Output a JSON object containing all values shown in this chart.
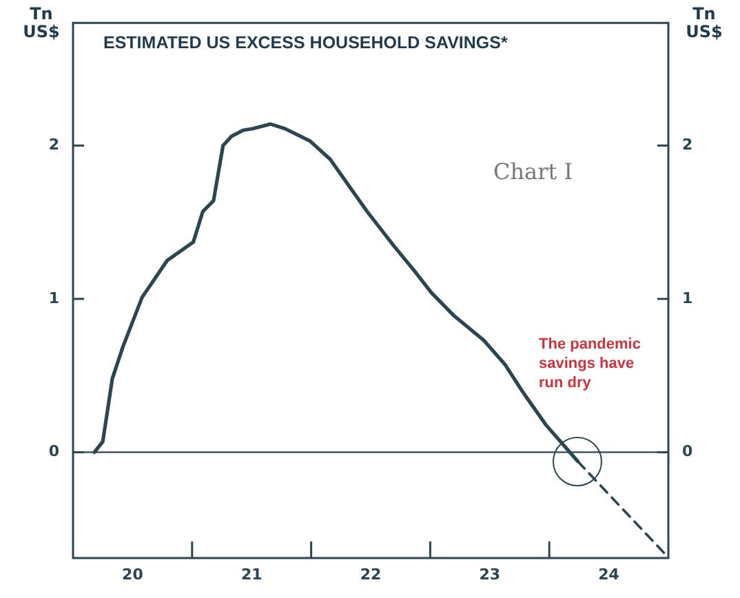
{
  "chart_data": {
    "type": "line",
    "title": "ESTIMATED US EXCESS HOUSEHOLD SAVINGS*",
    "ylabel": "Tn US$",
    "y2label": "Tn US$",
    "annotations": [
      "Chart I",
      "The pandemic savings have run dry"
    ],
    "series": [
      {
        "color": "#2b4650",
        "line_style": "solid",
        "x": [
          19.68,
          19.75,
          19.83,
          19.92,
          20.08,
          20.29,
          20.51,
          20.59,
          20.68,
          20.76,
          20.83,
          20.93,
          21.01,
          21.16,
          21.28,
          21.49,
          21.66,
          21.97,
          22.2,
          22.36,
          22.51,
          22.7,
          22.95,
          23.13,
          23.28,
          23.47,
          23.74
        ],
        "values": [
          0.0,
          0.07,
          0.48,
          0.69,
          1.01,
          1.25,
          1.37,
          1.57,
          1.64,
          2.0,
          2.06,
          2.1,
          2.11,
          2.14,
          2.11,
          2.03,
          1.91,
          1.57,
          1.34,
          1.19,
          1.04,
          0.89,
          0.73,
          0.57,
          0.39,
          0.18,
          -0.06
        ]
      },
      {
        "color": "#2b4650",
        "line_style": "dashed",
        "x": [
          23.74,
          24.48
        ],
        "values": [
          -0.06,
          -0.67
        ]
      }
    ],
    "xlim": [
      19.5,
      24.5
    ],
    "xticks": [
      20,
      {
        "value": 20.5,
        "label": null
      },
      21,
      {
        "value": 21.5,
        "label": null
      },
      22,
      {
        "value": 22.5,
        "label": null
      },
      23,
      {
        "value": 23.5,
        "label": null
      },
      24
    ],
    "ylim": [
      -0.69,
      2.8
    ],
    "yticks": [
      0,
      1,
      2
    ],
    "y2lim": [
      -0.69,
      2.8
    ],
    "y2ticks": [
      0,
      1,
      2
    ],
    "ref_lines": [
      {
        "axis": "y",
        "value": 0,
        "label": null,
        "color": "#2b4650"
      }
    ],
    "grid": false,
    "legend": false,
    "marker": "none"
  }
}
